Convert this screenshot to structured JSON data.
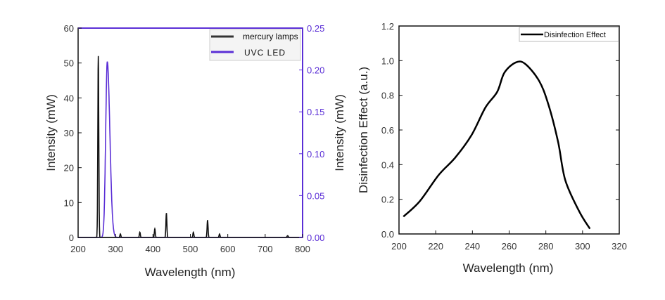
{
  "chart_data": [
    {
      "type": "line",
      "xlabel": "Wavelength (nm)",
      "ylabel": "Intensity (mW)",
      "y2label": "Intensity (mW)",
      "xlim": [
        200,
        800
      ],
      "ylim": [
        0,
        60
      ],
      "y2lim": [
        0,
        0.25
      ],
      "xticks": [
        200,
        300,
        400,
        500,
        600,
        700,
        800
      ],
      "yticks": [
        0,
        10,
        20,
        30,
        40,
        50,
        60
      ],
      "y2ticks": [
        "0.00",
        "0.05",
        "0.10",
        "0.15",
        "0.20",
        "0.25"
      ],
      "legend_position": "top-right",
      "grid": false,
      "series": [
        {
          "name": "mercury lamps",
          "axis": "left",
          "color": "#111111",
          "peaks": [
            {
              "center": 254,
              "height": 52,
              "width": 3
            },
            {
              "center": 313,
              "height": 1,
              "width": 3
            },
            {
              "center": 365,
              "height": 1.5,
              "width": 3
            },
            {
              "center": 405,
              "height": 2.5,
              "width": 3
            },
            {
              "center": 436,
              "height": 7,
              "width": 3
            },
            {
              "center": 508,
              "height": 1.5,
              "width": 3
            },
            {
              "center": 546,
              "height": 5,
              "width": 3
            },
            {
              "center": 578,
              "height": 1,
              "width": 3
            },
            {
              "center": 760,
              "height": 0.5,
              "width": 4
            }
          ]
        },
        {
          "name": "UVC LED",
          "axis": "right",
          "color": "#5b2fd6",
          "peaks": [
            {
              "center": 278,
              "height": 0.21,
              "width": 10
            }
          ]
        }
      ]
    },
    {
      "type": "line",
      "xlabel": "Wavelength (nm)",
      "ylabel": "Disinfection Effect (a.u.)",
      "xlim": [
        200,
        320
      ],
      "ylim": [
        0,
        1.2
      ],
      "xticks": [
        200,
        220,
        240,
        260,
        280,
        300,
        320
      ],
      "yticks": [
        "0.0",
        "0.2",
        "0.4",
        "0.6",
        "0.8",
        "1.0",
        "1.2"
      ],
      "legend_position": "top-right",
      "grid": false,
      "series": [
        {
          "name": "Disinfection Effect",
          "color": "#000000",
          "x": [
            202.4,
            211.4,
            221.6,
            230.6,
            239.5,
            247.1,
            253.5,
            257.4,
            263.7,
            268.9,
            276.5,
            281.6,
            286.7,
            290.6,
            298.2,
            304
          ],
          "y": [
            0.1,
            0.19,
            0.34,
            0.44,
            0.57,
            0.73,
            0.82,
            0.93,
            0.99,
            0.98,
            0.88,
            0.74,
            0.53,
            0.31,
            0.13,
            0.03
          ]
        }
      ]
    }
  ]
}
